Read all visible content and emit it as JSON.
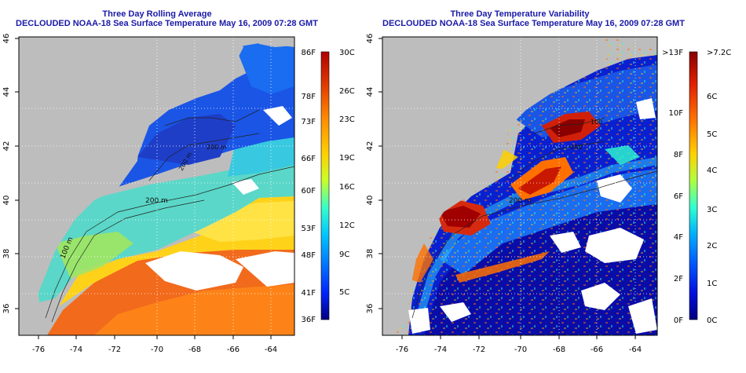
{
  "left_map": {
    "title_line1": "Three Day Rolling Average",
    "title_line2": "DECLOUDED NOAA-18 Sea Surface Temperature May 16, 2009 07:28 GMT",
    "x_ticks": [
      "-76",
      "-74",
      "-72",
      "-70",
      "-68",
      "-66",
      "-64"
    ],
    "y_ticks": [
      "36",
      "38",
      "40",
      "42",
      "44",
      "46"
    ],
    "contour_labels": [
      "200 m",
      "100 m",
      "200 m",
      "200 m"
    ]
  },
  "left_colorbar": {
    "fahrenheit": [
      "86F",
      "78F",
      "73F",
      "66F",
      "60F",
      "53F",
      "48F",
      "41F",
      "36F"
    ],
    "celsius": [
      "30C",
      "26C",
      "23C",
      "19C",
      "16C",
      "12C",
      "9C",
      "5C"
    ],
    "colors": [
      "#b10000",
      "#e03800",
      "#ff8c00",
      "#ffd000",
      "#c8ff28",
      "#38ffc8",
      "#00c8ff",
      "#0080ff",
      "#0024ff",
      "#00007f"
    ]
  },
  "right_map": {
    "title_line1": "Three Day Temperature Variability",
    "title_line2": "DECLOUDED NOAA-18 Sea Surface Temperature May 16, 2009 07:28 GMT",
    "x_ticks": [
      "-76",
      "-74",
      "-72",
      "-70",
      "-68",
      "-66",
      "-64"
    ],
    "y_ticks": [
      "36",
      "38",
      "40",
      "42",
      "44",
      "46"
    ],
    "contour_labels": [
      "200 m",
      "100",
      "100"
    ]
  },
  "right_colorbar": {
    "fahrenheit": [
      ">13F",
      "10F",
      "8F",
      "6F",
      "4F",
      "2F",
      "0F"
    ],
    "celsius": [
      ">7.2C",
      "6C",
      "5C",
      "4C",
      "3C",
      "2C",
      "1C",
      "0C"
    ],
    "colors": [
      "#8a0000",
      "#e02000",
      "#ff7000",
      "#ffd000",
      "#b0ff40",
      "#30ffd0",
      "#00b0ff",
      "#0060ff",
      "#0010e0",
      "#00007f"
    ]
  }
}
